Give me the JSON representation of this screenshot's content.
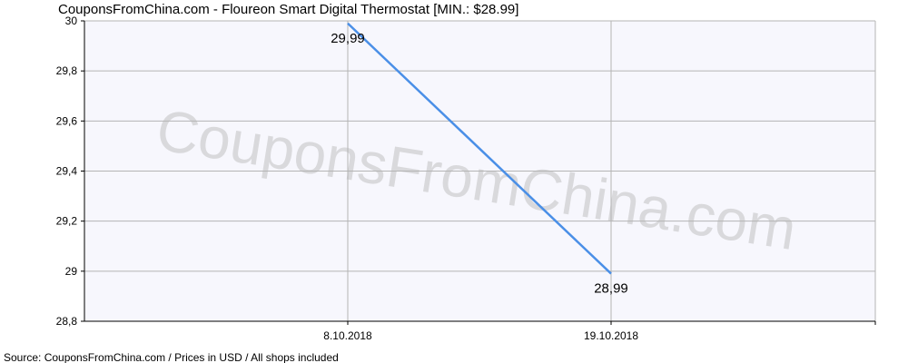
{
  "chart_data": {
    "type": "line",
    "title": "CouponsFromChina.com - Floureon Smart Digital Thermostat [MIN.: $28.99]",
    "x": [
      "8.10.2018",
      "19.10.2018"
    ],
    "series": [
      {
        "values": [
          29.99,
          28.99
        ],
        "labels": [
          "29,99",
          "28,99"
        ],
        "color": "#4a8fe7"
      }
    ],
    "ylim": [
      28.8,
      30
    ],
    "yticks": [
      {
        "value": 30,
        "label": "30"
      },
      {
        "value": 29.8,
        "label": "29,8"
      },
      {
        "value": 29.6,
        "label": "29,6"
      },
      {
        "value": 29.4,
        "label": "29,4"
      },
      {
        "value": 29.2,
        "label": "29,2"
      },
      {
        "value": 29,
        "label": "29"
      },
      {
        "value": 28.8,
        "label": "28,8"
      }
    ],
    "grid": true,
    "plot_background": "#f7f7fd",
    "grid_color": "#b4b4b4",
    "watermark": "CouponsFromChina.com",
    "footer": "Source:  CouponsFromChina.com / Prices in USD / All shops included"
  }
}
